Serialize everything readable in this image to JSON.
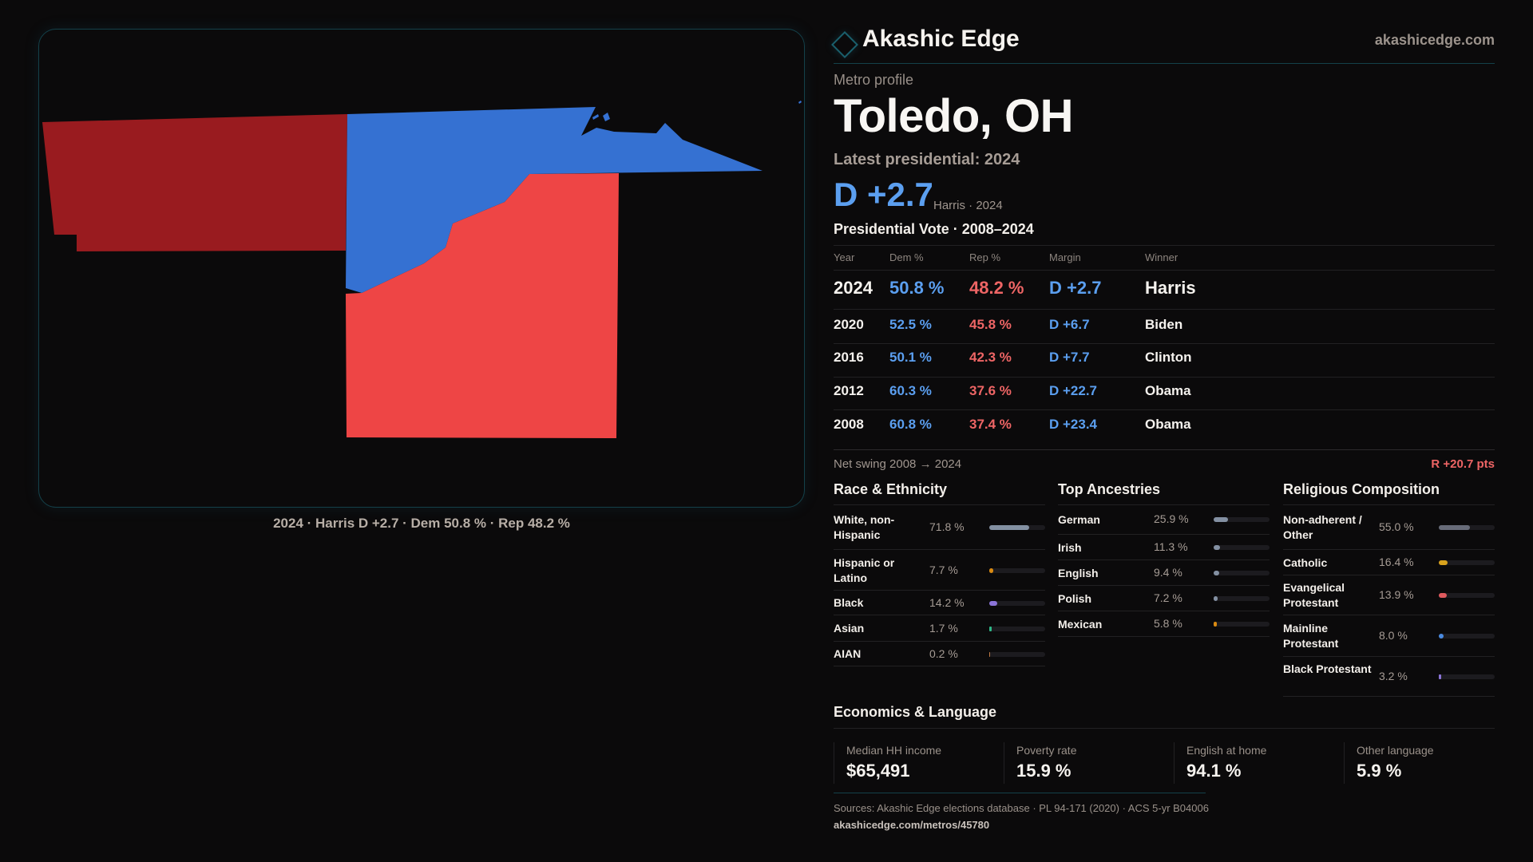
{
  "brand": {
    "name": "Akashic Edge",
    "site": "akashicedge.com",
    "logo_icon": "diamond-icon"
  },
  "metro": {
    "eyebrow": "Metro profile",
    "title": "Toledo, OH",
    "latest_label": "Latest presidential: 2024",
    "margin": "D +2.7",
    "margin_sub": "Harris · 2024"
  },
  "colors": {
    "dem": "#5b9ff0",
    "rep": "#ee6565",
    "map_dem": "#3571d2",
    "map_rep_light": "#ee4545",
    "map_rep_dark": "#991b1f",
    "accent": "#14414a"
  },
  "map": {
    "caption": "2024 · Harris D +2.7 · Dem 50.8 % · Rep 48.2 %",
    "regions": [
      {
        "name": "county-west",
        "winner": "R",
        "shade": "dark"
      },
      {
        "name": "county-lucas",
        "winner": "D",
        "shade": "light"
      },
      {
        "name": "county-wood",
        "winner": "R",
        "shade": "light"
      }
    ]
  },
  "pres": {
    "title": "Presidential Vote · 2008–2024",
    "headers": [
      "Year",
      "Dem %",
      "Rep %",
      "Margin",
      "Winner"
    ],
    "rows": [
      {
        "year": "2024",
        "dem": "50.8 %",
        "rep": "48.2 %",
        "margin": "D +2.7",
        "winner": "Harris"
      },
      {
        "year": "2020",
        "dem": "52.5 %",
        "rep": "45.8 %",
        "margin": "D +6.7",
        "winner": "Biden"
      },
      {
        "year": "2016",
        "dem": "50.1 %",
        "rep": "42.3 %",
        "margin": "D +7.7",
        "winner": "Clinton"
      },
      {
        "year": "2012",
        "dem": "60.3 %",
        "rep": "37.6 %",
        "margin": "D +22.7",
        "winner": "Obama"
      },
      {
        "year": "2008",
        "dem": "60.8 %",
        "rep": "37.4 %",
        "margin": "D +23.4",
        "winner": "Obama"
      }
    ],
    "swing_label": "Net swing 2008 → 2024",
    "swing_value": "R +20.7 pts"
  },
  "race": {
    "title": "Race & Ethnicity",
    "rows": [
      {
        "label": "White, non-Hispanic",
        "value": "71.8 %",
        "pct": 71.8,
        "color": "#8390a2"
      },
      {
        "label": "Hispanic or Latino",
        "value": "7.7 %",
        "pct": 7.7,
        "color": "#d98a12"
      },
      {
        "label": "Black",
        "value": "14.2 %",
        "pct": 14.2,
        "color": "#8b74d8"
      },
      {
        "label": "Asian",
        "value": "1.7 %",
        "pct": 1.7,
        "color": "#2fb787"
      },
      {
        "label": "AIAN",
        "value": "0.2 %",
        "pct": 0.2,
        "color": "#c07a45"
      }
    ]
  },
  "ancestry": {
    "title": "Top Ancestries",
    "rows": [
      {
        "label": "German",
        "value": "25.9 %",
        "pct": 25.9,
        "color": "#8390a2"
      },
      {
        "label": "Irish",
        "value": "11.3 %",
        "pct": 11.3,
        "color": "#8390a2"
      },
      {
        "label": "English",
        "value": "9.4 %",
        "pct": 9.4,
        "color": "#8390a2"
      },
      {
        "label": "Polish",
        "value": "7.2 %",
        "pct": 7.2,
        "color": "#8390a2"
      },
      {
        "label": "Mexican",
        "value": "5.8 %",
        "pct": 5.8,
        "color": "#d98a12"
      }
    ]
  },
  "religion": {
    "title": "Religious Composition",
    "rows": [
      {
        "label": "Non-adherent / Other",
        "value": "55.0 %",
        "pct": 55.0,
        "color": "#676b78"
      },
      {
        "label": "Catholic",
        "value": "16.4 %",
        "pct": 16.4,
        "color": "#d8a21d"
      },
      {
        "label": "Evangelical Protestant",
        "value": "13.9 %",
        "pct": 13.9,
        "color": "#de5a5e"
      },
      {
        "label": "Mainline Protestant",
        "value": "8.0 %",
        "pct": 8.0,
        "color": "#4a8ae0"
      },
      {
        "label": "Black Protestant",
        "value": "3.2 %",
        "pct": 3.2,
        "color": "#8b74d8"
      }
    ]
  },
  "econ": {
    "title": "Economics & Language",
    "stats": [
      {
        "label": "Median HH income",
        "value": "$65,491"
      },
      {
        "label": "Poverty rate",
        "value": "15.9 %"
      },
      {
        "label": "English at home",
        "value": "94.1 %"
      },
      {
        "label": "Other language",
        "value": "5.9 %"
      }
    ]
  },
  "footer": {
    "sources": "Sources: Akashic Edge elections database · PL 94-171 (2020) · ACS 5-yr B04006",
    "permalink": "akashicedge.com/metros/45780"
  }
}
